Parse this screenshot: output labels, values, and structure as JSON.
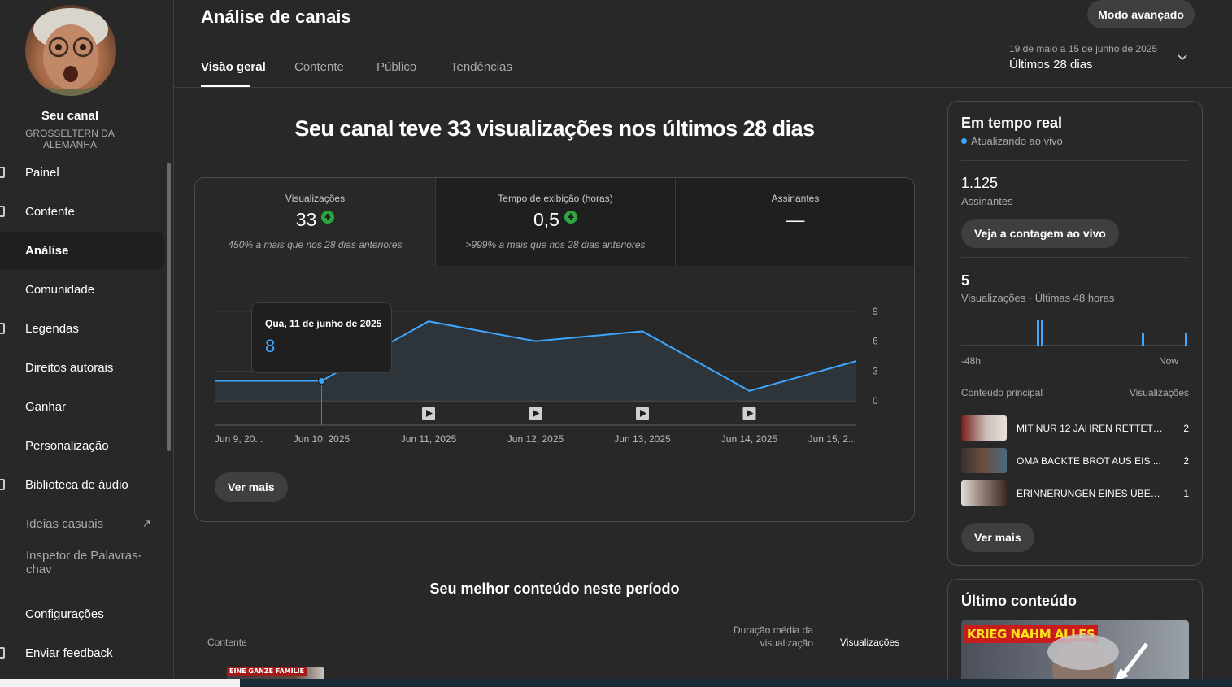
{
  "sidebar": {
    "channel_name": "Seu canal",
    "channel_handle": "GROSSELTERN DA ALEMANHA",
    "items": [
      {
        "label": "Painel"
      },
      {
        "label": "Contente"
      },
      {
        "label": "Análise"
      },
      {
        "label": "Comunidade"
      },
      {
        "label": "Legendas"
      },
      {
        "label": "Direitos autorais"
      },
      {
        "label": "Ganhar"
      },
      {
        "label": "Personalização"
      },
      {
        "label": "Biblioteca de áudio"
      },
      {
        "label": "Ideias casuais"
      },
      {
        "label": "Inspetor de Palavras-chav"
      }
    ],
    "bottom_items": [
      {
        "label": "Configurações"
      },
      {
        "label": "Enviar feedback"
      }
    ]
  },
  "header": {
    "title": "Análise de canais",
    "advanced_button": "Modo avançado",
    "tabs": [
      {
        "label": "Visão geral"
      },
      {
        "label": "Contente"
      },
      {
        "label": "Público"
      },
      {
        "label": "Tendências"
      }
    ],
    "date_range_sub": "19 de maio a 15 de junho de 2025",
    "date_range_main": "Últimos 28 dias"
  },
  "overview": {
    "headline": "Seu canal teve 33 visualizações nos últimos 28 dias",
    "metrics": [
      {
        "label": "Visualizações",
        "value": "33",
        "sub": "450% a mais que nos 28 dias anteriores"
      },
      {
        "label": "Tempo de exibição (horas)",
        "value": "0,5",
        "sub": ">999% a mais que nos 28 dias anteriores"
      },
      {
        "label": "Assinantes",
        "value": "—",
        "sub": ""
      }
    ],
    "tooltip": {
      "date": "Qua, 11 de junho de 2025",
      "value": "8"
    },
    "more_button": "Ver mais",
    "accent_color": "#3ea6ff"
  },
  "chart_data": {
    "type": "area",
    "x": [
      "Jun 9, 20...",
      "Jun 10, 2025",
      "Jun 11, 2025",
      "Jun 12, 2025",
      "Jun 13, 2025",
      "Jun 14, 2025",
      "Jun 15, 2..."
    ],
    "series": [
      {
        "values": [
          2,
          2,
          8,
          6,
          7,
          1,
          4
        ]
      }
    ],
    "y_ticks": [
      "9",
      "6",
      "3",
      "0"
    ],
    "ylim": [
      0,
      9
    ],
    "grid": true,
    "video_markers": [
      "Jun 11, 2025",
      "Jun 12, 2025",
      "Jun 13, 2025",
      "Jun 14, 2025"
    ],
    "highlight_index": 1
  },
  "best_content": {
    "title": "Seu melhor conteúdo neste período",
    "col_content": "Contente",
    "col_duration": "Duração média da visualização",
    "col_views": "Visualizações",
    "thumb_text": "EINE GANZE FAMILIE"
  },
  "realtime": {
    "title": "Em tempo real",
    "live_label": "Atualizando ao vivo",
    "subscribers": "1.125",
    "subscribers_label": "Assinantes",
    "live_count_button": "Veja a contagem ao vivo",
    "views": "5",
    "views_label": "Visualizações · Últimas 48 horas",
    "bar_values": [
      1,
      1,
      0.5,
      0.5
    ],
    "axis_left": "-48h",
    "axis_right": "Now",
    "content_header": "Conteúdo principal",
    "views_header": "Visualizações",
    "rows": [
      {
        "title": "MIT NUR 12 JAHREN RETTETE ...",
        "views": "2"
      },
      {
        "title": "OMA BACKTE BROT AUS EIS ...",
        "views": "2"
      },
      {
        "title": "ERINNERUNGEN EINES ÜBERLEBENDEN",
        "views": "1"
      }
    ],
    "more_button": "Ver mais"
  },
  "latest": {
    "title": "Último conteúdo",
    "thumb_text": "KRIEG NAHM ALLES"
  }
}
